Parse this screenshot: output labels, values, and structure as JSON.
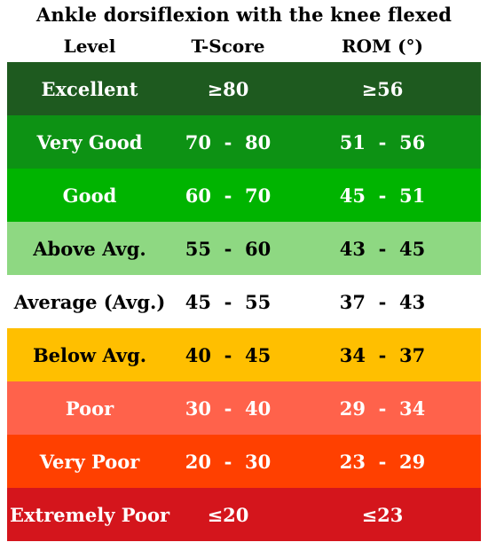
{
  "title": "Ankle dorsiflexion with the knee flexed",
  "headers": {
    "level": "Level",
    "tscore": "T-Score",
    "rom": "ROM (°)"
  },
  "rows": [
    {
      "level": "Excellent",
      "tscore": "≥80",
      "rom": "≥56",
      "bg": "#1e5a1f",
      "fg": "#ffffff"
    },
    {
      "level": "Very Good",
      "tscore": "70  -  80",
      "rom": "51  -  56",
      "bg": "#0d9214",
      "fg": "#ffffff"
    },
    {
      "level": "Good",
      "tscore": "60  -  70",
      "rom": "45  -  51",
      "bg": "#00b400",
      "fg": "#ffffff"
    },
    {
      "level": "Above Avg.",
      "tscore": "55  -  60",
      "rom": "43  -  45",
      "bg": "#8ed882",
      "fg": "#000000"
    },
    {
      "level": "Average (Avg.)",
      "tscore": "45  -  55",
      "rom": "37  -  43",
      "bg": "#ffffff",
      "fg": "#000000"
    },
    {
      "level": "Below Avg.",
      "tscore": "40  -  45",
      "rom": "34  -  37",
      "bg": "#ffbf00",
      "fg": "#000000"
    },
    {
      "level": "Poor",
      "tscore": "30  -  40",
      "rom": "29  -  34",
      "bg": "#ff624b",
      "fg": "#ffffff"
    },
    {
      "level": "Very Poor",
      "tscore": "20  -  30",
      "rom": "23  -  29",
      "bg": "#ff4000",
      "fg": "#ffffff"
    },
    {
      "level": "Extremely Poor",
      "tscore": "≤20",
      "rom": "≤23",
      "bg": "#d4151c",
      "fg": "#ffffff"
    }
  ]
}
